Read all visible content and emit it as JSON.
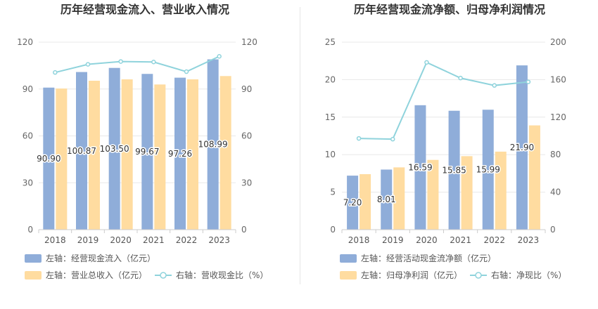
{
  "colors": {
    "bar_primary": "#8fadd9",
    "bar_secondary": "#ffdca0",
    "line": "#8fd3dc",
    "grid": "#e8e8e8",
    "axis": "#cccccc"
  },
  "chart_data": [
    {
      "type": "bar",
      "title": "历年经营现金流入、营业收入情况",
      "categories": [
        "2018",
        "2019",
        "2020",
        "2021",
        "2022",
        "2023"
      ],
      "left_axis": {
        "ylim": [
          0,
          120
        ],
        "ticks": [
          "0",
          "30",
          "60",
          "90",
          "120"
        ]
      },
      "right_axis": {
        "ylim": [
          0,
          120
        ],
        "ticks": [
          "0",
          "30",
          "60",
          "90",
          "120"
        ]
      },
      "series": [
        {
          "name": "左轴：经营现金流入（亿元）",
          "kind": "bar",
          "axis": "left",
          "color": "#8fadd9",
          "values": [
            90.9,
            100.87,
            103.5,
            99.67,
            97.26,
            108.99
          ],
          "labels": [
            "90.90",
            "100.87",
            "103.50",
            "99.67",
            "97.26",
            "108.99"
          ]
        },
        {
          "name": "左轴：营业总收入（亿元）",
          "kind": "bar",
          "axis": "left",
          "color": "#ffdca0",
          "values": [
            90.3,
            95.3,
            96.2,
            92.9,
            96.2,
            98.3
          ]
        },
        {
          "name": "右轴：营收现金比（%）",
          "kind": "line",
          "axis": "right",
          "color": "#8fd3dc",
          "values": [
            100.6,
            105.8,
            107.6,
            107.3,
            101.1,
            110.9
          ]
        }
      ],
      "legend": "bottom-left",
      "grid": true
    },
    {
      "type": "bar",
      "title": "历年经营现金流净额、归母净利润情况",
      "categories": [
        "2018",
        "2019",
        "2020",
        "2021",
        "2022",
        "2023"
      ],
      "left_axis": {
        "ylim": [
          0,
          25
        ],
        "ticks": [
          "0",
          "5",
          "10",
          "15",
          "20",
          "25"
        ]
      },
      "right_axis": {
        "ylim": [
          0,
          200
        ],
        "ticks": [
          "0",
          "40",
          "80",
          "120",
          "160",
          "200"
        ]
      },
      "series": [
        {
          "name": "左轴：经营活动现金流净额（亿元）",
          "kind": "bar",
          "axis": "left",
          "color": "#8fadd9",
          "values": [
            7.2,
            8.01,
            16.59,
            15.85,
            15.99,
            21.9
          ],
          "labels": [
            "7.20",
            "8.01",
            "16.59",
            "15.85",
            "15.99",
            "21.90"
          ]
        },
        {
          "name": "左轴：归母净利润（亿元）",
          "kind": "bar",
          "axis": "left",
          "color": "#ffdca0",
          "values": [
            7.4,
            8.3,
            9.3,
            9.8,
            10.4,
            13.9
          ]
        },
        {
          "name": "右轴：净现比（%）",
          "kind": "line",
          "axis": "right",
          "color": "#8fd3dc",
          "values": [
            97.3,
            96.5,
            178.4,
            161.7,
            153.8,
            157.6
          ]
        }
      ],
      "legend": "bottom-left",
      "grid": true
    }
  ]
}
